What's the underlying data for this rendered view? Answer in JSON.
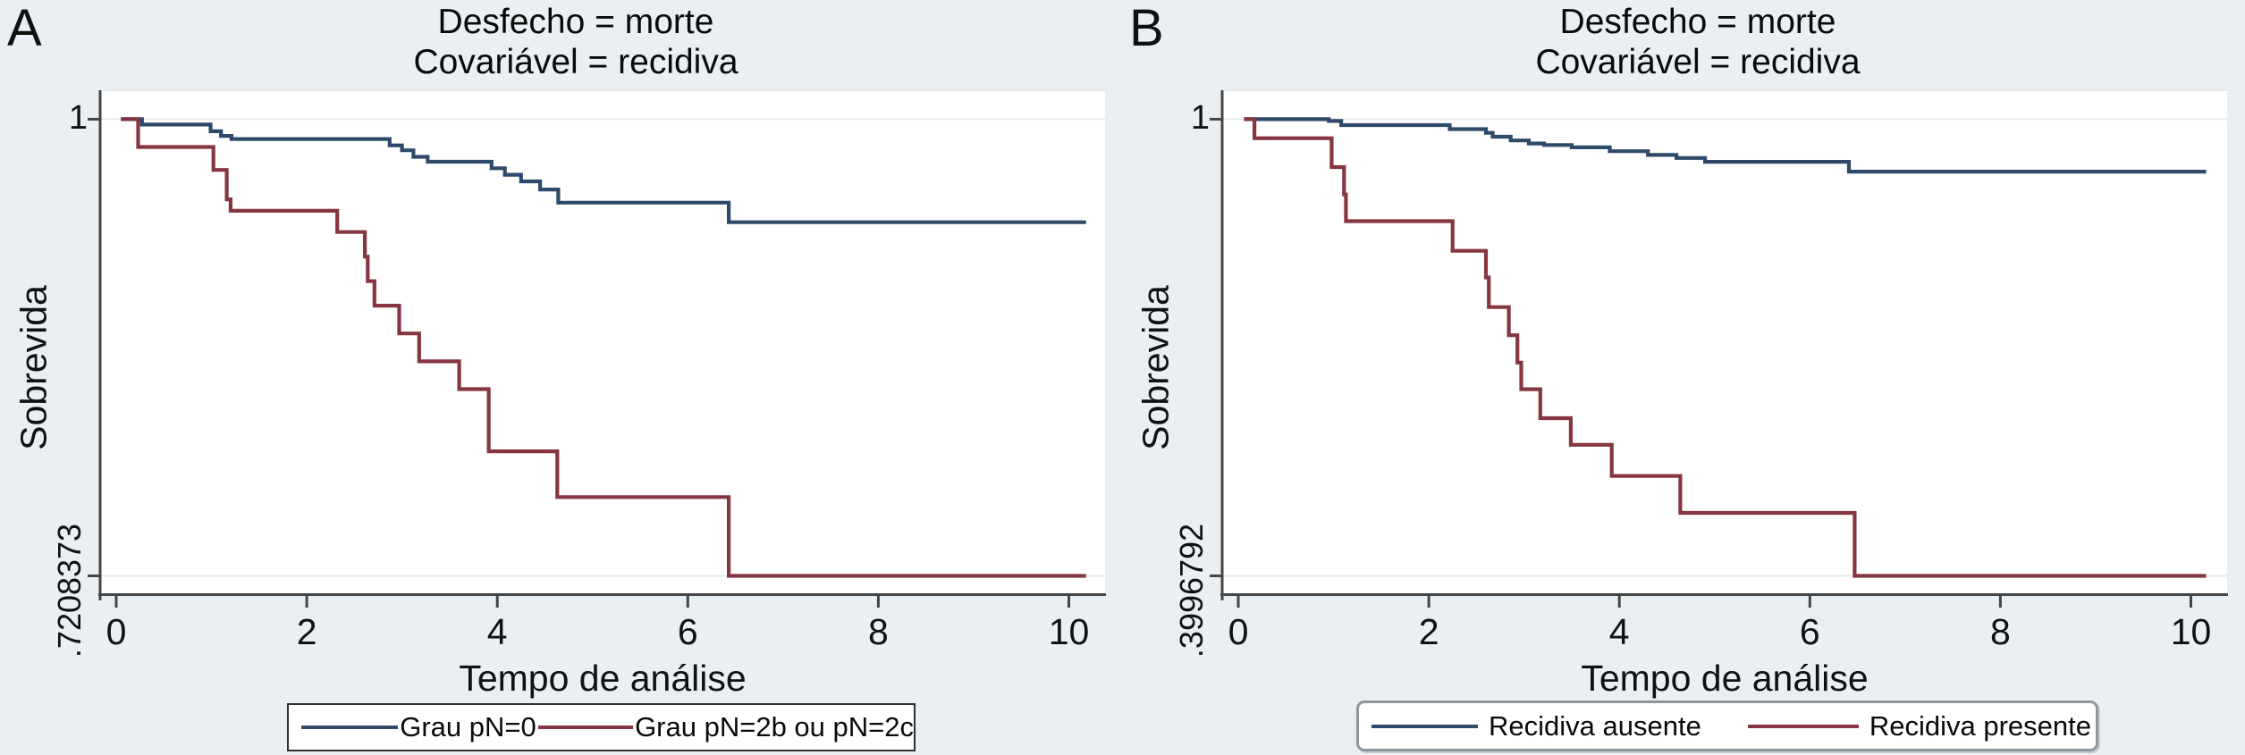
{
  "colors": {
    "page_background": "#e9eff2",
    "plot_background": "#ffffff",
    "gridline": "#e7eae9",
    "plot_top_border": "#dde4e7",
    "axis": "#454545",
    "text": "#111111",
    "navy": "#2e4a6b",
    "maroon": "#853641"
  },
  "chart_data": [
    {
      "type": "line",
      "panel_label": "A",
      "title_line1": "Desfecho = morte",
      "title_line2": "Covariável = recidiva",
      "xlabel": "Tempo de análise",
      "ylabel": "Sobrevida",
      "x_ticks": [
        0,
        2,
        4,
        6,
        8,
        10
      ],
      "xlim": [
        0,
        10.35
      ],
      "x_end": 10.18,
      "y_ticks": [
        {
          "label": "1",
          "value": 1
        },
        {
          "label": ".7208373",
          "value": 0.7208373
        }
      ],
      "legend_position": "bottom",
      "grid": "on",
      "series": [
        {
          "name": "Grau pN=0",
          "color": "#2e4a6b",
          "steps": [
            [
              0.05,
              1
            ],
            [
              0.27,
              0.9967
            ],
            [
              0.99,
              0.9926
            ],
            [
              1.1,
              0.9898
            ],
            [
              1.21,
              0.9879
            ],
            [
              2.87,
              0.984
            ],
            [
              3.0,
              0.981
            ],
            [
              3.12,
              0.977
            ],
            [
              3.27,
              0.974
            ],
            [
              3.94,
              0.97
            ],
            [
              4.08,
              0.966
            ],
            [
              4.25,
              0.962
            ],
            [
              4.45,
              0.957
            ],
            [
              4.64,
              0.949
            ],
            [
              6.43,
              0.937
            ]
          ]
        },
        {
          "name": "Grau pN=2b ou pN=2c",
          "color": "#853641",
          "steps": [
            [
              0.05,
              1
            ],
            [
              0.23,
              0.983
            ],
            [
              1.02,
              0.969
            ],
            [
              1.16,
              0.951
            ],
            [
              1.2,
              0.944
            ],
            [
              2.32,
              0.931
            ],
            [
              2.61,
              0.916
            ],
            [
              2.64,
              0.901
            ],
            [
              2.71,
              0.886
            ],
            [
              2.97,
              0.869
            ],
            [
              3.18,
              0.852
            ],
            [
              3.6,
              0.835
            ],
            [
              3.91,
              0.797
            ],
            [
              4.63,
              0.769
            ],
            [
              6.43,
              0.7208373
            ]
          ]
        }
      ]
    },
    {
      "type": "line",
      "panel_label": "B",
      "title_line1": "Desfecho = morte",
      "title_line2": "Covariável = recidiva",
      "xlabel": "Tempo de análise",
      "ylabel": "Sobrevida",
      "x_ticks": [
        0,
        2,
        4,
        6,
        8,
        10
      ],
      "xlim": [
        0,
        10.35
      ],
      "x_end": 10.16,
      "y_ticks": [
        {
          "label": "1",
          "value": 1
        },
        {
          "label": ".3996792",
          "value": 0.3996792
        }
      ],
      "legend_position": "bottom",
      "grid": "on",
      "series": [
        {
          "name": "Recidiva ausente",
          "color": "#2e4a6b",
          "steps": [
            [
              0.06,
              1
            ],
            [
              0.95,
              0.9977
            ],
            [
              1.08,
              0.9922
            ],
            [
              2.22,
              0.987
            ],
            [
              2.6,
              0.982
            ],
            [
              2.67,
              0.977
            ],
            [
              2.86,
              0.972
            ],
            [
              3.05,
              0.968
            ],
            [
              3.21,
              0.966
            ],
            [
              3.5,
              0.963
            ],
            [
              3.9,
              0.958
            ],
            [
              4.3,
              0.953
            ],
            [
              4.6,
              0.949
            ],
            [
              4.9,
              0.944
            ],
            [
              6.41,
              0.931
            ]
          ]
        },
        {
          "name": "Recidiva presente",
          "color": "#853641",
          "steps": [
            [
              0.06,
              1
            ],
            [
              0.17,
              0.975
            ],
            [
              0.98,
              0.937
            ],
            [
              1.11,
              0.901
            ],
            [
              1.13,
              0.866
            ],
            [
              2.25,
              0.827
            ],
            [
              2.6,
              0.792
            ],
            [
              2.63,
              0.753
            ],
            [
              2.84,
              0.716
            ],
            [
              2.93,
              0.68
            ],
            [
              2.97,
              0.645
            ],
            [
              3.17,
              0.607
            ],
            [
              3.49,
              0.572
            ],
            [
              3.92,
              0.531
            ],
            [
              4.64,
              0.4825
            ],
            [
              6.47,
              0.3996792
            ]
          ]
        }
      ]
    }
  ]
}
